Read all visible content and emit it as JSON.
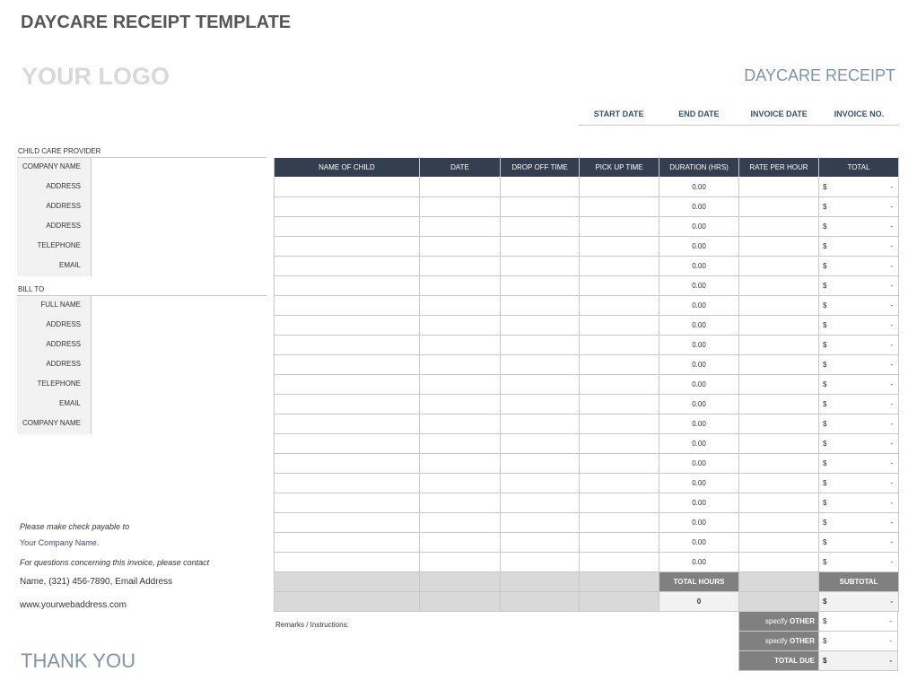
{
  "title": "DAYCARE RECEIPT TEMPLATE",
  "logo": "YOUR LOGO",
  "receipt_label": "DAYCARE RECEIPT",
  "meta": [
    "START DATE",
    "END DATE",
    "INVOICE DATE",
    "INVOICE NO."
  ],
  "provider": {
    "label": "CHILD CARE PROVIDER",
    "fields": [
      "COMPANY NAME",
      "ADDRESS",
      "ADDRESS",
      "ADDRESS",
      "TELEPHONE",
      "EMAIL"
    ]
  },
  "bill_to": {
    "label": "BILL TO",
    "fields": [
      "FULL NAME",
      "ADDRESS",
      "ADDRESS",
      "ADDRESS",
      "TELEPHONE",
      "EMAIL",
      "COMPANY NAME"
    ]
  },
  "table": {
    "headers": [
      "NAME OF CHILD",
      "DATE",
      "DROP OFF TIME",
      "PICK UP TIME",
      "DURATION (HRS)",
      "RATE PER HOUR",
      "TOTAL"
    ],
    "rows": [
      {
        "duration": "0.00",
        "cur": "$",
        "total": "-"
      },
      {
        "duration": "0.00",
        "cur": "$",
        "total": "-"
      },
      {
        "duration": "0.00",
        "cur": "$",
        "total": "-"
      },
      {
        "duration": "0.00",
        "cur": "$",
        "total": "-"
      },
      {
        "duration": "0.00",
        "cur": "$",
        "total": "-"
      },
      {
        "duration": "0.00",
        "cur": "$",
        "total": "-"
      },
      {
        "duration": "0.00",
        "cur": "$",
        "total": "-"
      },
      {
        "duration": "0.00",
        "cur": "$",
        "total": "-"
      },
      {
        "duration": "0.00",
        "cur": "$",
        "total": "-"
      },
      {
        "duration": "0.00",
        "cur": "$",
        "total": "-"
      },
      {
        "duration": "0.00",
        "cur": "$",
        "total": "-"
      },
      {
        "duration": "0.00",
        "cur": "$",
        "total": "-"
      },
      {
        "duration": "0.00",
        "cur": "$",
        "total": "-"
      },
      {
        "duration": "0.00",
        "cur": "$",
        "total": "-"
      },
      {
        "duration": "0.00",
        "cur": "$",
        "total": "-"
      },
      {
        "duration": "0.00",
        "cur": "$",
        "total": "-"
      },
      {
        "duration": "0.00",
        "cur": "$",
        "total": "-"
      },
      {
        "duration": "0.00",
        "cur": "$",
        "total": "-"
      },
      {
        "duration": "0.00",
        "cur": "$",
        "total": "-"
      },
      {
        "duration": "0.00",
        "cur": "$",
        "total": "-"
      }
    ]
  },
  "totals": {
    "total_hours_label": "TOTAL HOURS",
    "total_hours": "0",
    "subtotal_label": "SUBTOTAL",
    "subtotal_cur": "$",
    "subtotal": "-",
    "other": [
      {
        "pre": "specify ",
        "label": "OTHER",
        "cur": "$",
        "value": "-"
      },
      {
        "pre": "specify ",
        "label": "OTHER",
        "cur": "$",
        "value": "-"
      }
    ],
    "total_due_label": "TOTAL DUE",
    "total_due_cur": "$",
    "total_due": "-"
  },
  "remarks": "Remarks / Instructions:",
  "footer": {
    "payable": "Please make check payable to",
    "company": "Your Company Name.",
    "questions": "For questions concerning this invoice, please contact",
    "contact": "Name, (321) 456-7890, Email Address",
    "web": "www.yourwebaddress.com",
    "thanks": "THANK YOU"
  }
}
